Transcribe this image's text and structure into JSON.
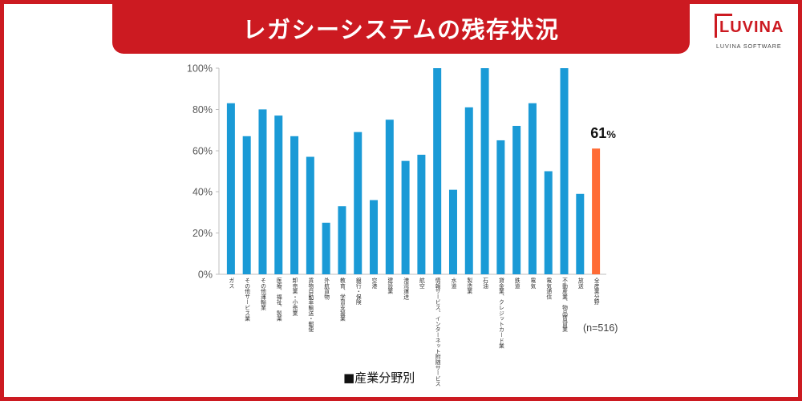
{
  "theme": {
    "brand_red": "#CC1A21",
    "note_text": "#404040",
    "legend_text": "#111111",
    "logo_sub_text": "#444444"
  },
  "logo": {
    "wordmark": "LUVINA",
    "tagline": "LUVINA SOFTWARE",
    "icon": "luvina-bracket-icon"
  },
  "chart_data": {
    "type": "bar",
    "title": "レガシーシステムの残存状況",
    "categories": [
      "ガス",
      "その他サービス業",
      "その他運輸業",
      "医療、福祉、製薬",
      "卸売業・小売業",
      "貨物自動車輸送・郵便",
      "外航貨物",
      "教育、学習支援業",
      "銀行・保険",
      "空港",
      "建設業",
      "港湾運送",
      "航空",
      "情報サービス、インターネット附随サービス",
      "水道",
      "製造業",
      "石油",
      "貸金業、クレジットカード業",
      "鉄道",
      "電気",
      "電気通信",
      "不動産業、物品賃貸業",
      "放送",
      "全産業分野"
    ],
    "series": [
      {
        "name": "産業分野別",
        "values": [
          83,
          67,
          80,
          77,
          67,
          57,
          25,
          33,
          69,
          36,
          75,
          55,
          58,
          100,
          41,
          81,
          100,
          65,
          72,
          83,
          50,
          100,
          39,
          61
        ]
      }
    ],
    "highlight": {
      "category": "全産業分野"
    },
    "data_labels": [
      {
        "category": "全産業分野",
        "number": "61",
        "unit": "%"
      }
    ],
    "ylim": [
      0,
      100
    ],
    "y_ticks": [
      0,
      20,
      40,
      60,
      80,
      100
    ],
    "y_tick_labels": [
      "0%",
      "20%",
      "40%",
      "60%",
      "80%",
      "100%"
    ],
    "grid": false,
    "legend": {
      "placement": "bottom-center",
      "marker": "■"
    },
    "note": "(n=516)",
    "colors": {
      "bar": "#1A9AD6",
      "highlight": "#FF6B35",
      "axis": "#BFBFBF",
      "tick_text": "#595959",
      "data_label_text": "#111111"
    }
  }
}
